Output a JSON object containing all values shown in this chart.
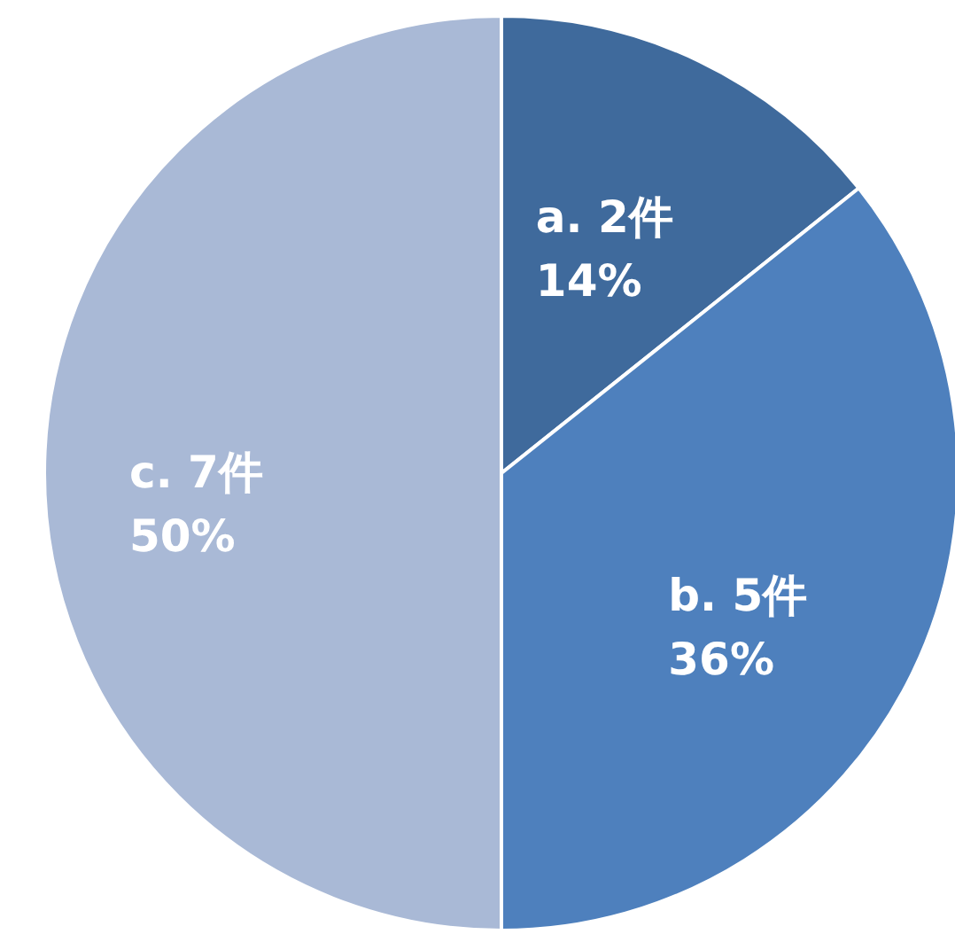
{
  "chart_data": {
    "type": "pie",
    "categories": [
      "a.",
      "b.",
      "c."
    ],
    "values": [
      2,
      5,
      7
    ],
    "value_labels": [
      "2件\n14%",
      "5件\n36%",
      "7件\n50%"
    ],
    "colors": [
      "#3f6a9c",
      "#4e80bd",
      "#a9b9d6"
    ]
  }
}
